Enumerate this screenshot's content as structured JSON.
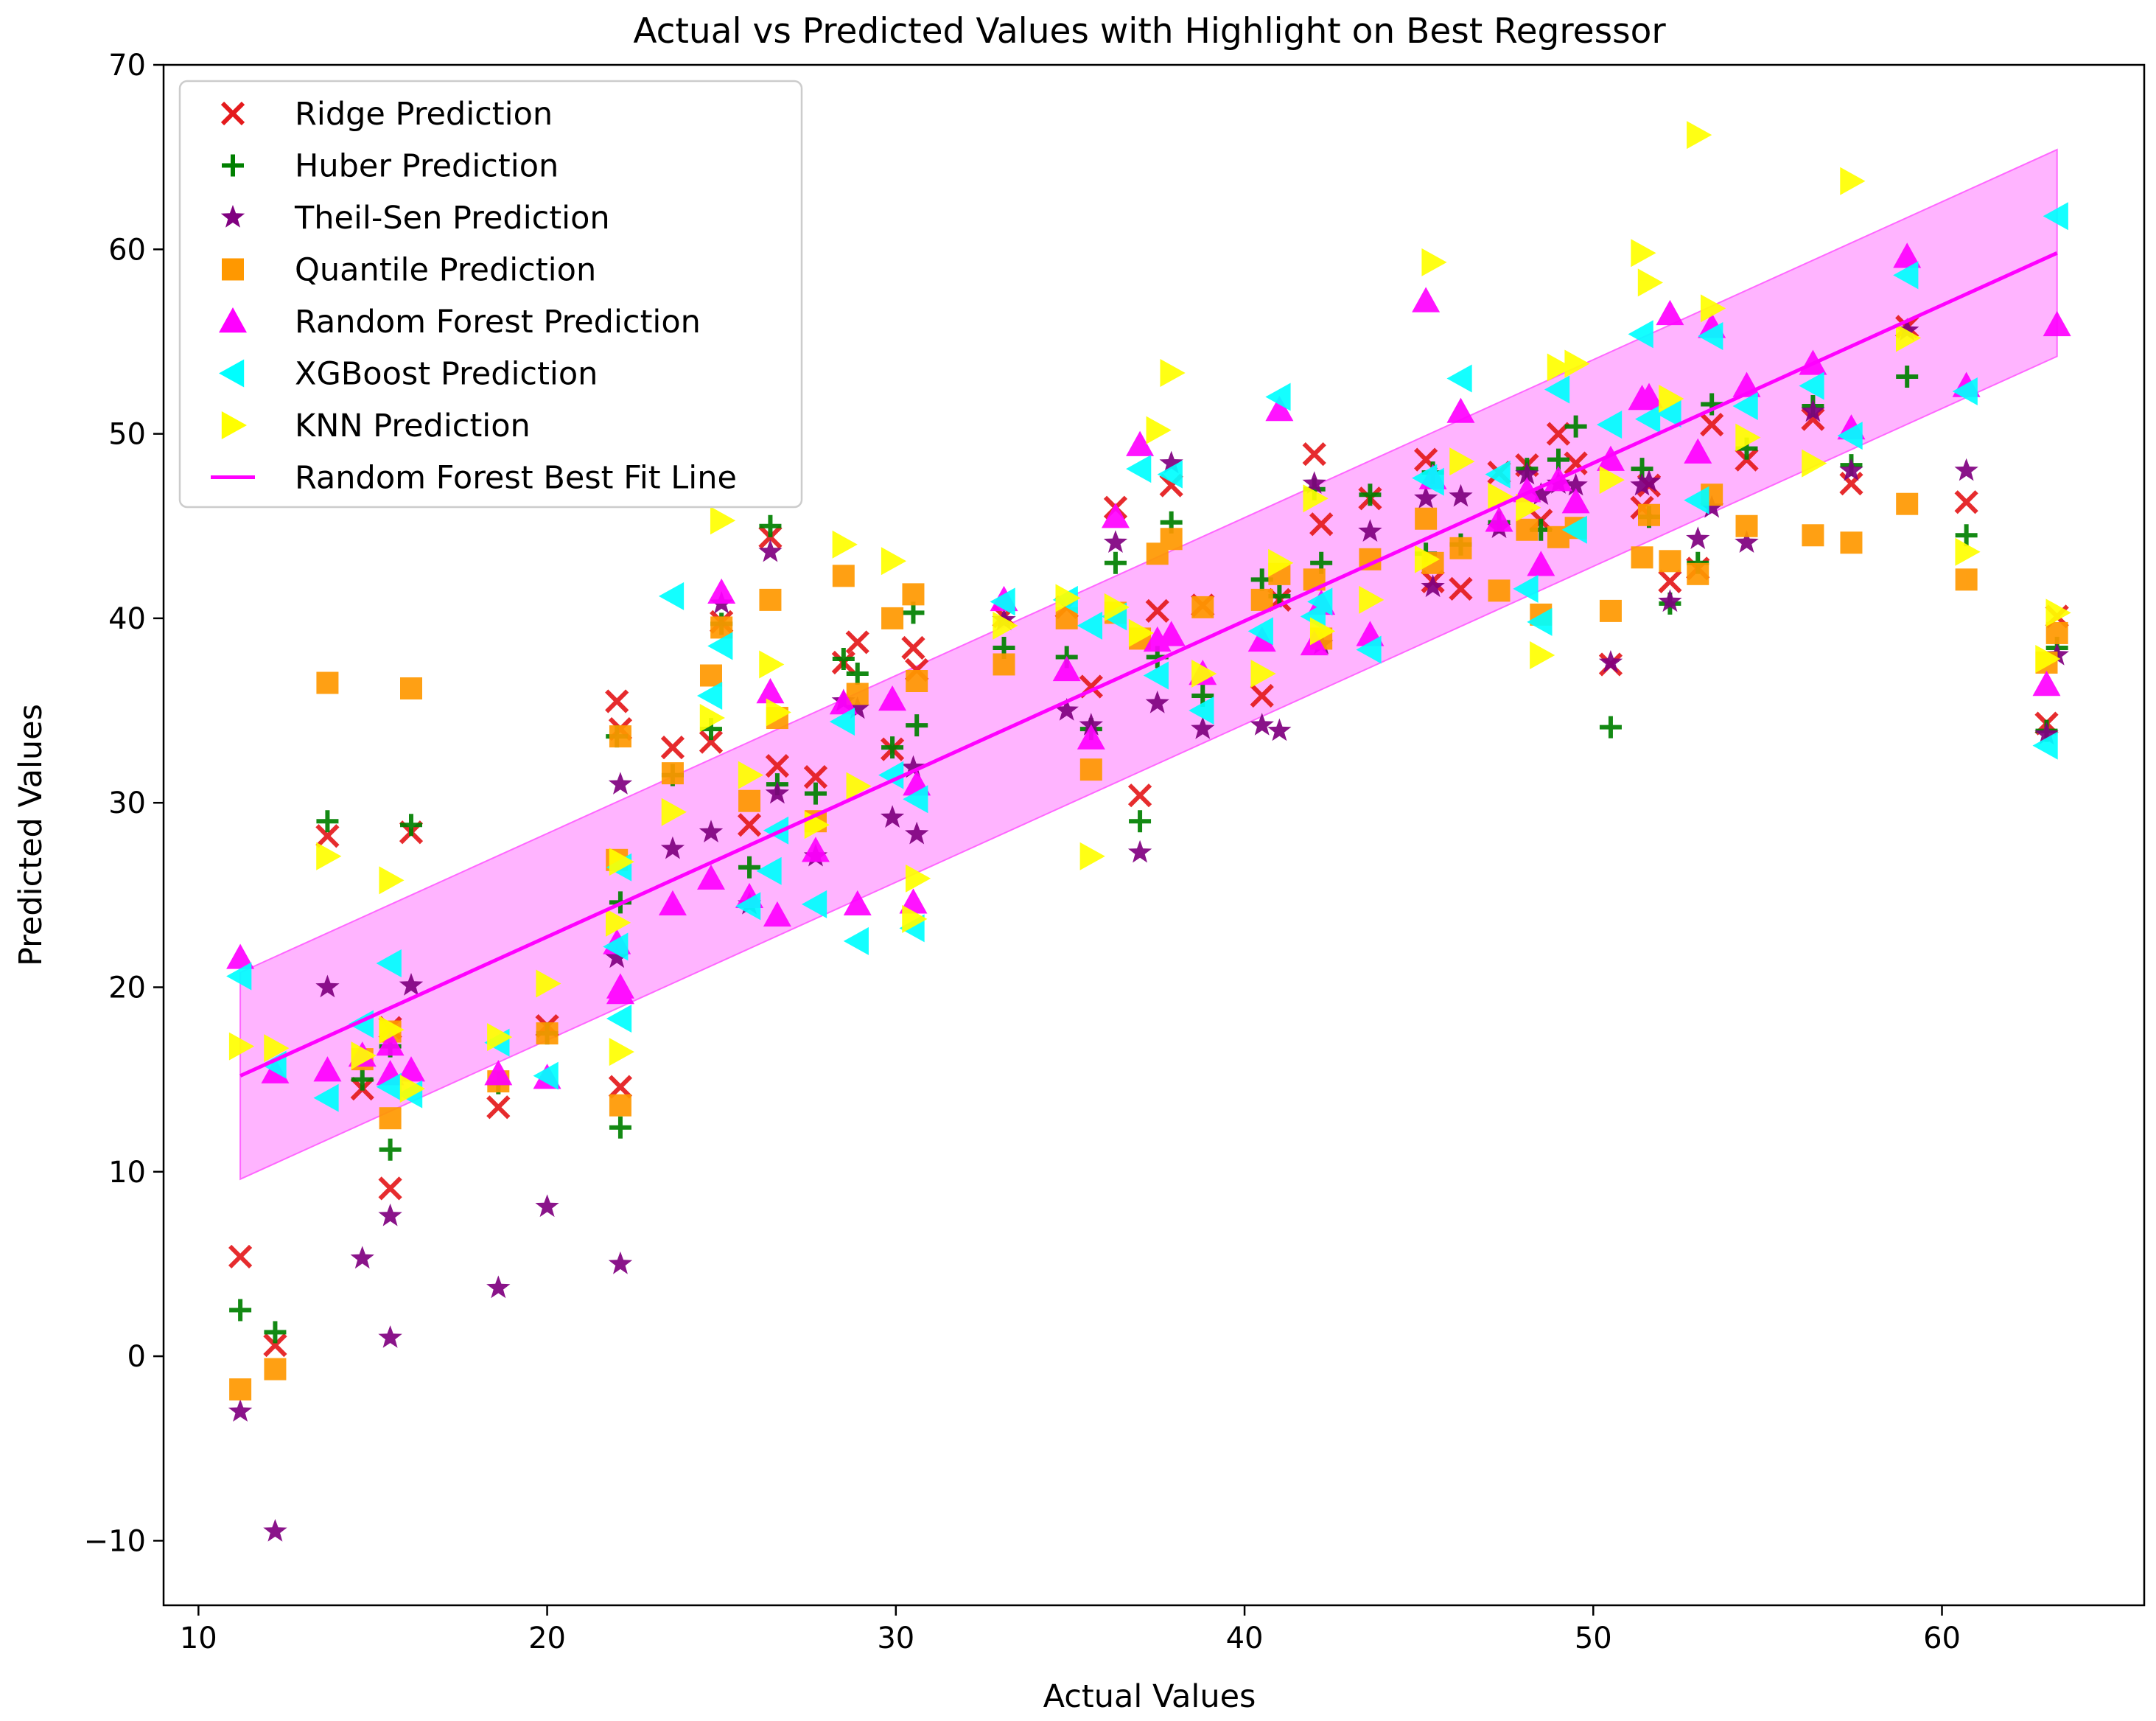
{
  "chart_data": {
    "type": "scatter",
    "title": "Actual vs Predicted Values with Highlight on Best Regressor",
    "xlabel": "Actual Values",
    "ylabel": "Predicted Values",
    "xlim": [
      9,
      65.8
    ],
    "ylim": [
      -13.5,
      70
    ],
    "xticks": [
      10,
      20,
      30,
      40,
      50,
      60
    ],
    "yticks": [
      -10,
      0,
      10,
      20,
      30,
      40,
      50,
      60,
      70
    ],
    "xtick_labels": [
      "10",
      "20",
      "30",
      "40",
      "50",
      "60"
    ],
    "ytick_labels": [
      "−10",
      "0",
      "10",
      "20",
      "30",
      "40",
      "50",
      "60",
      "70"
    ],
    "grid": false,
    "legend_position": "top-left",
    "x": [
      11.2,
      12.2,
      13.7,
      14.7,
      15.5,
      15.5,
      16.1,
      18.6,
      20.0,
      22.0,
      22.1,
      22.1,
      23.6,
      24.7,
      25.0,
      25.8,
      26.4,
      26.6,
      27.7,
      28.5,
      28.9,
      29.9,
      30.5,
      30.6,
      33.1,
      34.9,
      35.6,
      36.3,
      37.0,
      37.5,
      37.9,
      38.8,
      40.5,
      41.0,
      42.0,
      42.2,
      43.6,
      45.2,
      45.4,
      46.2,
      47.3,
      48.1,
      48.5,
      49.0,
      49.5,
      50.5,
      51.4,
      51.6,
      52.2,
      53.0,
      53.4,
      54.4,
      56.3,
      57.4,
      59.0,
      60.7,
      63.0,
      63.3
    ],
    "series": [
      {
        "name": "Ridge Prediction",
        "marker": "x",
        "color": "#e41a1c",
        "values": [
          5.4,
          0.6,
          28.2,
          14.5,
          9.1,
          17.8,
          28.4,
          13.5,
          17.9,
          35.5,
          14.6,
          34.0,
          33.0,
          33.3,
          39.8,
          28.8,
          44.4,
          32.0,
          31.4,
          37.6,
          38.7,
          32.9,
          38.4,
          37.2,
          40.1,
          40.6,
          36.3,
          46.0,
          30.4,
          40.4,
          47.2,
          40.7,
          35.8,
          41.0,
          48.9,
          45.1,
          46.5,
          48.6,
          42.0,
          41.6,
          47.9,
          48.3,
          45.3,
          50.0,
          48.4,
          37.5,
          46.0,
          47.2,
          42.0,
          42.7,
          50.5,
          48.6,
          50.8,
          47.3,
          55.8,
          46.3,
          34.3,
          40.1
        ]
      },
      {
        "name": "Huber Prediction",
        "marker": "+",
        "color": "#008000",
        "values": [
          2.5,
          1.3,
          29.0,
          15.0,
          11.2,
          16.8,
          28.8,
          14.8,
          17.5,
          33.6,
          12.4,
          24.6,
          31.5,
          34.0,
          39.7,
          26.5,
          45.0,
          31.0,
          30.5,
          37.8,
          37.0,
          33.0,
          40.3,
          34.2,
          38.4,
          37.9,
          34.0,
          43.0,
          29.0,
          37.9,
          45.2,
          35.8,
          42.1,
          41.2,
          47.0,
          43.0,
          46.7,
          43.5,
          47.9,
          44.0,
          45.2,
          48.1,
          44.8,
          48.6,
          50.4,
          34.1,
          48.1,
          45.5,
          40.8,
          43.0,
          51.6,
          49.2,
          51.5,
          48.3,
          53.1,
          44.5,
          33.9,
          38.4
        ]
      },
      {
        "name": "Theil-Sen Prediction",
        "marker": "star",
        "color": "#800080",
        "values": [
          -3.0,
          -9.5,
          20.0,
          5.3,
          1.0,
          7.6,
          20.1,
          3.7,
          8.1,
          21.6,
          5.0,
          31.0,
          27.5,
          28.4,
          40.8,
          24.5,
          43.6,
          30.5,
          27.1,
          35.5,
          35.1,
          29.2,
          31.9,
          28.3,
          39.9,
          35.0,
          34.2,
          44.1,
          27.3,
          35.4,
          48.4,
          34.0,
          34.2,
          33.9,
          47.3,
          38.6,
          44.7,
          46.5,
          41.7,
          46.6,
          44.9,
          47.8,
          46.7,
          47.3,
          47.2,
          37.6,
          47.2,
          47.4,
          40.9,
          44.3,
          46.0,
          44.1,
          51.2,
          48.0,
          55.6,
          48.0,
          33.7,
          38.0
        ]
      },
      {
        "name": "Quantile Prediction",
        "marker": "square",
        "color": "#ff9800",
        "values": [
          -1.8,
          -0.7,
          36.5,
          16.1,
          12.9,
          17.6,
          36.2,
          14.9,
          17.5,
          26.9,
          13.6,
          33.6,
          31.6,
          36.9,
          39.5,
          30.1,
          41.0,
          34.6,
          29.0,
          42.3,
          35.9,
          40.0,
          41.3,
          36.6,
          37.5,
          40.0,
          31.8,
          40.3,
          38.9,
          43.5,
          44.3,
          40.6,
          41.0,
          42.4,
          42.1,
          38.9,
          43.2,
          45.4,
          43.0,
          43.8,
          41.5,
          44.8,
          40.2,
          44.4,
          44.9,
          40.4,
          43.3,
          45.6,
          43.1,
          42.4,
          46.7,
          45.0,
          44.5,
          44.1,
          46.2,
          42.1,
          37.6,
          39.2
        ]
      },
      {
        "name": "Random Forest Prediction",
        "marker": "triangle-up",
        "color": "#ff00ff",
        "values": [
          21.6,
          15.4,
          15.5,
          16.3,
          15.3,
          16.9,
          15.5,
          15.3,
          15.1,
          22.4,
          19.7,
          20.0,
          24.5,
          25.9,
          41.4,
          24.9,
          36.0,
          23.9,
          27.4,
          35.4,
          24.5,
          35.6,
          24.6,
          31.0,
          41.0,
          37.2,
          33.5,
          45.5,
          49.4,
          38.8,
          39.1,
          37.0,
          38.8,
          51.3,
          38.6,
          40.8,
          39.1,
          57.2,
          47.6,
          51.2,
          45.3,
          46.9,
          42.9,
          47.5,
          46.3,
          48.6,
          51.9,
          52.0,
          56.5,
          49.0,
          55.8,
          52.6,
          53.8,
          50.3,
          59.6,
          52.6,
          36.4,
          55.9
        ]
      },
      {
        "name": "XGBoost Prediction",
        "marker": "triangle-left",
        "color": "#00ffff",
        "values": [
          20.6,
          15.8,
          14.0,
          18.0,
          21.3,
          14.6,
          14.2,
          17.0,
          15.2,
          22.2,
          18.3,
          26.5,
          41.2,
          35.8,
          38.5,
          24.4,
          26.3,
          28.5,
          24.5,
          34.4,
          22.5,
          31.5,
          23.2,
          30.2,
          40.9,
          41.0,
          39.6,
          40.1,
          48.1,
          36.9,
          47.8,
          35.0,
          39.3,
          52.0,
          40.1,
          40.9,
          38.3,
          47.6,
          47.4,
          53.0,
          47.8,
          41.6,
          39.8,
          52.4,
          44.8,
          50.5,
          55.4,
          50.8,
          51.1,
          46.4,
          55.3,
          51.5,
          52.6,
          49.9,
          58.6,
          52.3,
          33.1,
          61.8
        ]
      },
      {
        "name": "KNN Prediction",
        "marker": "triangle-right",
        "color": "#ffff00",
        "values": [
          16.8,
          16.7,
          27.1,
          16.3,
          17.7,
          25.8,
          14.5,
          17.3,
          20.2,
          23.5,
          16.5,
          26.8,
          29.5,
          34.6,
          45.3,
          31.5,
          37.5,
          34.9,
          28.8,
          44.0,
          30.9,
          43.1,
          23.7,
          25.9,
          39.6,
          41.1,
          27.1,
          40.6,
          39.2,
          50.2,
          53.3,
          37.0,
          37.0,
          43.0,
          46.5,
          39.3,
          41.0,
          43.2,
          59.3,
          48.5,
          46.6,
          46.0,
          38.0,
          53.6,
          53.8,
          47.5,
          59.8,
          58.2,
          51.9,
          66.2,
          56.8,
          49.8,
          48.4,
          63.7,
          55.2,
          43.6,
          37.8,
          40.3
        ]
      }
    ],
    "best_fit": {
      "name": "Random Forest Best Fit Line",
      "color": "#ff00ff",
      "x": [
        11.2,
        63.3
      ],
      "y": [
        15.2,
        59.8
      ],
      "band_halfwidth": 5.6,
      "band_color": "#ff9bff"
    }
  }
}
